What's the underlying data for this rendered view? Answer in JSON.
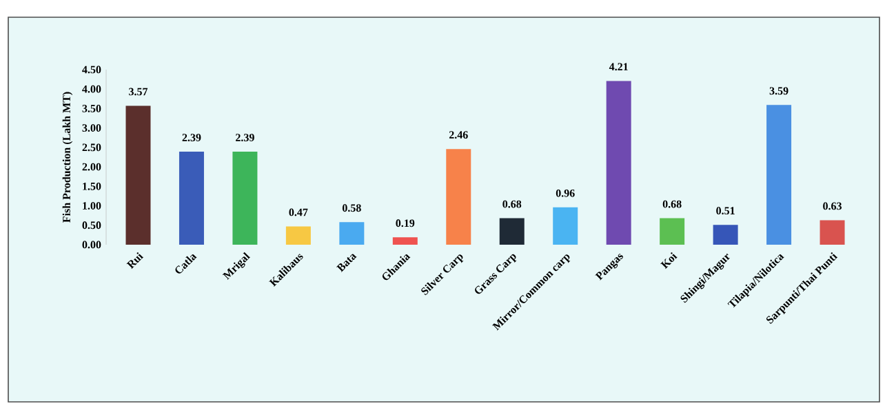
{
  "chart_data": {
    "type": "bar",
    "ylabel": "Fish Production (Lakh MT)",
    "categories": [
      "Rui",
      "Catla",
      "Mrigal",
      "Kalibaus",
      "Bata",
      "Ghania",
      "Silver Carp",
      "Grass Carp",
      "Mirror/Common carp",
      "Pangas",
      "Koi",
      "Shingi/Magur",
      "Tilapia/Nilotica",
      "Sarpunti/Thai Punti"
    ],
    "values": [
      3.57,
      2.39,
      2.39,
      0.47,
      0.58,
      0.19,
      2.46,
      0.68,
      0.96,
      4.21,
      0.68,
      0.51,
      3.59,
      0.63
    ],
    "colors": [
      "#5b2f2c",
      "#3a5cb8",
      "#3db55a",
      "#f7c843",
      "#4aaaf0",
      "#ef5350",
      "#f7824a",
      "#1f2a36",
      "#4ab4f2",
      "#6f4ab0",
      "#5cbf52",
      "#3656b8",
      "#4a90e2",
      "#d9534f"
    ],
    "ylim": [
      0,
      4.5
    ],
    "yticks": [
      {
        "value": 0,
        "label": "0.00"
      },
      {
        "value": 0.5,
        "label": "0.50"
      },
      {
        "value": 1,
        "label": "1.00"
      },
      {
        "value": 1.5,
        "label": "1.50"
      },
      {
        "value": 2,
        "label": "2.00"
      },
      {
        "value": 2.5,
        "label": "2.50"
      },
      {
        "value": 3,
        "label": "3.00"
      },
      {
        "value": 3.5,
        "label": "3.50"
      },
      {
        "value": 4,
        "label": "4.00"
      },
      {
        "value": 4.5,
        "label": "4.50"
      }
    ],
    "data_labels": true,
    "grid": false
  }
}
